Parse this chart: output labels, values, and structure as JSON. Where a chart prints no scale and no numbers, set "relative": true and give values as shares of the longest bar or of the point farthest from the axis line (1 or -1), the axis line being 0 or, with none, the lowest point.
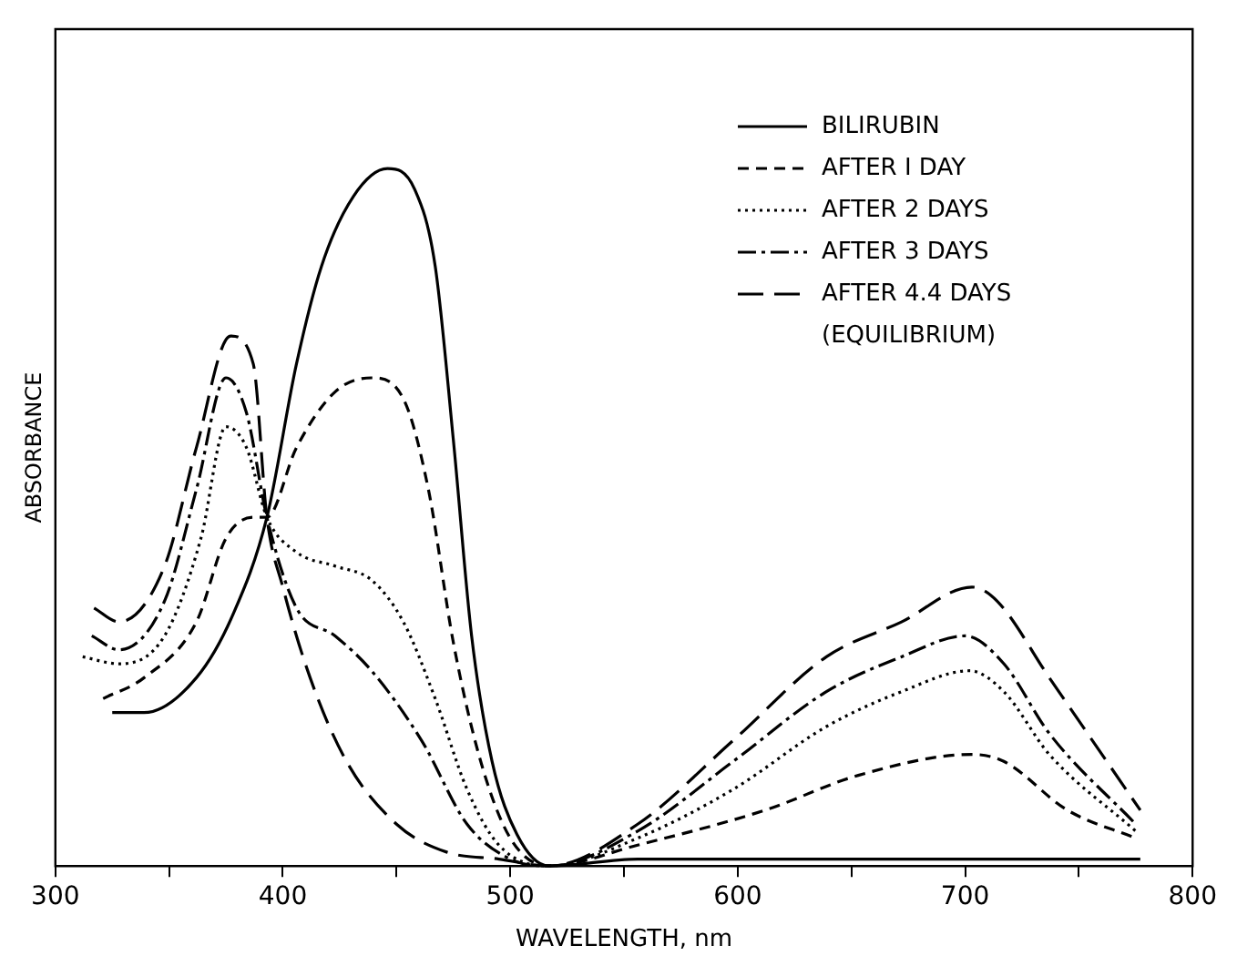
{
  "chart_data": {
    "type": "line",
    "xlabel": "WAVELENGTH, nm",
    "ylabel": "ABSORBANCE",
    "relative": true,
    "xlim": [
      300,
      800
    ],
    "xticks": [
      300,
      {
        "value": 350,
        "label": null
      },
      400,
      {
        "value": 450,
        "label": null
      },
      500,
      {
        "value": 550,
        "label": null
      },
      600,
      {
        "value": 650,
        "label": null
      },
      700,
      {
        "value": 750,
        "label": null
      },
      800
    ],
    "grid": false,
    "legend": "top right",
    "marker": "none",
    "series": [
      {
        "name": "BILIRUBIN",
        "color": "#000000",
        "line_style": "solid",
        "x": [
          325,
          339,
          362,
          378,
          393,
          406,
          417,
          431,
          446,
          458,
          467,
          475,
          483,
          492,
          503,
          517,
          556,
          777
        ],
        "values": [
          0.22,
          0.22,
          0.27,
          0.36,
          0.5,
          0.72,
          0.86,
          0.96,
          1.0,
          0.97,
          0.86,
          0.61,
          0.33,
          0.15,
          0.045,
          0,
          0.01,
          0.01
        ]
      },
      {
        "name": "AFTER I DAY",
        "color": "#000000",
        "line_style": "dashed",
        "x": [
          321,
          339,
          362,
          375,
          387,
          393,
          406,
          423,
          439,
          453,
          464,
          475,
          487,
          500,
          517,
          556,
          612,
          653,
          703,
          717,
          745,
          775
        ],
        "values": [
          0.24,
          0.27,
          0.35,
          0.47,
          0.5,
          0.5,
          0.6,
          0.68,
          0.7,
          0.67,
          0.54,
          0.32,
          0.15,
          0.04,
          0,
          0.03,
          0.08,
          0.13,
          0.16,
          0.15,
          0.08,
          0.04
        ]
      },
      {
        "name": "AFTER 2 DAYS",
        "color": "#000000",
        "line_style": "dotted",
        "x": [
          312,
          328,
          348,
          364,
          375,
          384,
          393,
          406,
          423,
          439,
          453,
          467,
          481,
          495,
          517,
          556,
          598,
          639,
          672,
          702,
          717,
          737,
          775
        ],
        "values": [
          0.3,
          0.29,
          0.33,
          0.47,
          0.63,
          0.6,
          0.5,
          0.45,
          0.43,
          0.41,
          0.35,
          0.24,
          0.11,
          0.03,
          0,
          0.04,
          0.11,
          0.2,
          0.25,
          0.28,
          0.25,
          0.16,
          0.05
        ]
      },
      {
        "name": "AFTER 3 DAYS",
        "color": "#000000",
        "line_style": "dashdot",
        "x": [
          316,
          328,
          348,
          362,
          375,
          384,
          393,
          406,
          423,
          439,
          461,
          481,
          500,
          517,
          556,
          598,
          639,
          672,
          700,
          717,
          737,
          775
        ],
        "values": [
          0.33,
          0.31,
          0.38,
          0.54,
          0.7,
          0.65,
          0.5,
          0.37,
          0.33,
          0.28,
          0.18,
          0.06,
          0.01,
          0,
          0.05,
          0.15,
          0.25,
          0.3,
          0.33,
          0.29,
          0.19,
          0.06
        ]
      },
      {
        "name": "AFTER 4.4 DAYS (EQUILIBRIUM)",
        "color": "#000000",
        "line_style": "longdash",
        "x": [
          317,
          328,
          348,
          362,
          377,
          387,
          393,
          400,
          412,
          428,
          450,
          472,
          495,
          517,
          556,
          598,
          639,
          672,
          703,
          714,
          737,
          777
        ],
        "values": [
          0.37,
          0.35,
          0.43,
          0.6,
          0.76,
          0.72,
          0.5,
          0.4,
          0.27,
          0.15,
          0.06,
          0.02,
          0.01,
          0,
          0.06,
          0.18,
          0.3,
          0.35,
          0.4,
          0.38,
          0.27,
          0.08
        ]
      }
    ]
  }
}
